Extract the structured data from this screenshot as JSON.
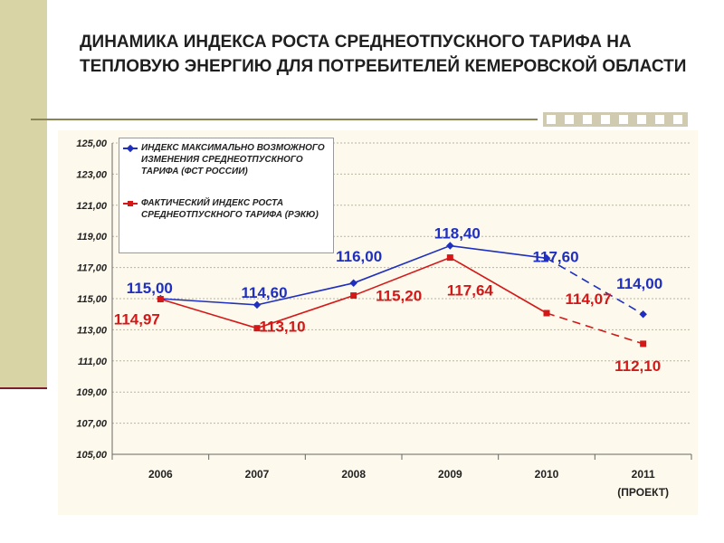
{
  "title": "ДИНАМИКА ИНДЕКСА РОСТА СРЕДНЕОТПУСКНОГО ТАРИФА НА ТЕПЛОВУЮ ЭНЕРГИЮ ДЛЯ ПОТРЕБИТЕЛЕЙ КЕМЕРОВСКОЙ ОБЛАСТИ",
  "colors": {
    "blue": "#1f2fbf",
    "red": "#d41818"
  },
  "chart_data": {
    "type": "line",
    "categories": [
      "2006",
      "2007",
      "2008",
      "2009",
      "2010",
      "2011"
    ],
    "category_sublabels": [
      "",
      "",
      "",
      "",
      "",
      "(ПРОЕКТ)"
    ],
    "ylim": [
      105,
      125
    ],
    "yticks": [
      "105,00",
      "107,00",
      "109,00",
      "111,00",
      "113,00",
      "115,00",
      "117,00",
      "119,00",
      "121,00",
      "123,00",
      "125,00"
    ],
    "grid": true,
    "legend_position": "top-left",
    "series": [
      {
        "name": "ИНДЕКС МАКСИМАЛЬНО ВОЗМОЖНОГО ИЗМЕНЕНИЯ СРЕДНЕОТПУСКНОГО ТАРИФА (ФСТ РОССИИ)",
        "color": "#1f2fbf",
        "marker": "diamond",
        "values": [
          115.0,
          114.6,
          116.0,
          118.4,
          117.6,
          114.0
        ],
        "labels": [
          "115,00",
          "114,60",
          "116,00",
          "118,40",
          "117,60",
          "114,00"
        ],
        "dashed_last_segment": true
      },
      {
        "name": "ФАКТИЧЕСКИЙ ИНДЕКС РОСТА СРЕДНЕОТПУСКНОГО ТАРИФА (РЭКЮ)",
        "color": "#d41818",
        "marker": "square",
        "values": [
          114.97,
          113.1,
          115.2,
          117.64,
          114.07,
          112.1
        ],
        "labels": [
          "114,97",
          "113,10",
          "115,20",
          "117,64",
          "114,07",
          "112,10"
        ],
        "dashed_last_segment": true
      }
    ]
  }
}
